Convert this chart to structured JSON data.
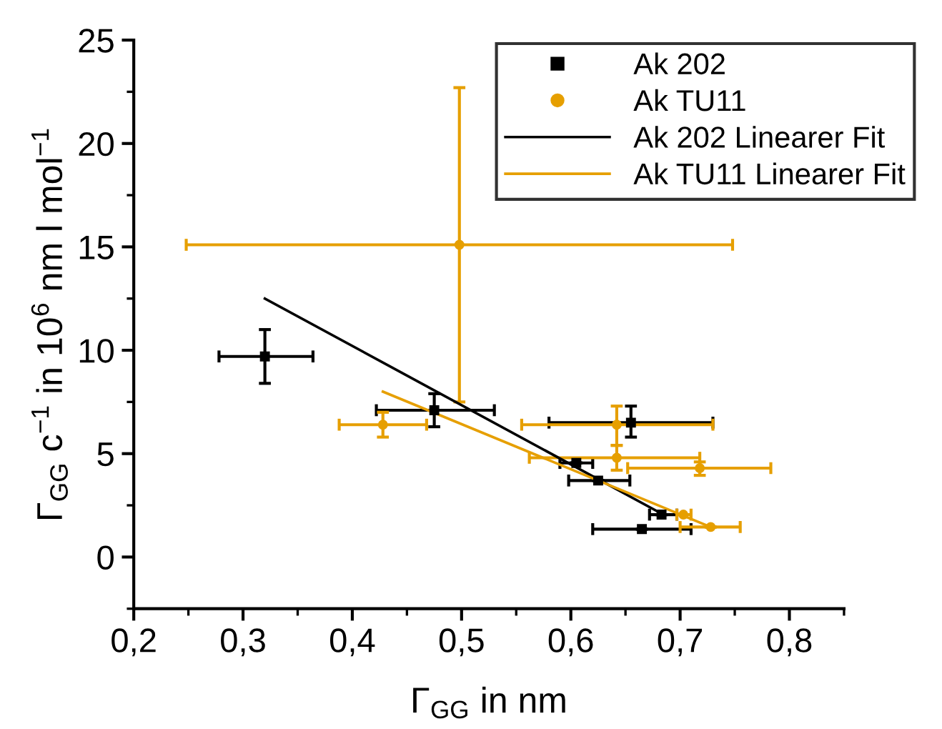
{
  "chart_data": {
    "type": "scatter",
    "xlabel": "Γ$_{GG}$ in nm",
    "ylabel": "Γ$_{GG}$ c$^{−1}$ in 10$^{6}$ nm l mol$^{−1}$",
    "xlim": [
      0.2,
      0.85
    ],
    "xticks": [
      {
        "value": 0.2,
        "label": "0,2"
      },
      {
        "value": 0.3,
        "label": "0,3"
      },
      {
        "value": 0.4,
        "label": "0,4"
      },
      {
        "value": 0.5,
        "label": "0,5"
      },
      {
        "value": 0.6,
        "label": "0,6"
      },
      {
        "value": 0.7,
        "label": "0,7"
      },
      {
        "value": 0.8,
        "label": "0,8"
      }
    ],
    "ylim": [
      -2.5,
      25
    ],
    "yticks": [
      0,
      5,
      10,
      15,
      20,
      25
    ],
    "grid": false,
    "legend": "top right",
    "series": [
      {
        "name": "Ak 202",
        "color": "#000000",
        "marker": "square",
        "x": [
          0.32,
          0.475,
          0.655,
          0.605,
          0.625,
          0.683,
          0.665
        ],
        "values": [
          9.7,
          7.1,
          6.5,
          4.55,
          3.7,
          2.05,
          1.35
        ],
        "errors": [
          [
            8.4,
            11.0
          ],
          [
            6.3,
            7.9
          ],
          [
            5.8,
            7.3
          ],
          null,
          null,
          null,
          null
        ],
        "xerrors": [
          [
            0.278,
            0.364
          ],
          [
            0.422,
            0.53
          ],
          [
            0.58,
            0.73
          ],
          [
            0.59,
            0.62
          ],
          [
            0.598,
            0.654
          ],
          [
            0.672,
            0.697
          ],
          [
            0.62,
            0.71
          ]
        ]
      },
      {
        "name": "Ak TU11",
        "color": "#e69f00",
        "marker": "circle",
        "x": [
          0.498,
          0.428,
          0.642,
          0.642,
          0.718,
          0.703,
          0.728
        ],
        "values": [
          15.1,
          6.4,
          6.4,
          4.8,
          4.3,
          2.05,
          1.45
        ],
        "errors": [
          [
            7.5,
            22.7
          ],
          [
            5.8,
            7.0
          ],
          [
            5.4,
            7.3
          ],
          [
            4.2,
            5.4
          ],
          [
            3.95,
            4.6
          ],
          null,
          null
        ],
        "xerrors": [
          [
            0.248,
            0.748
          ],
          [
            0.388,
            0.468
          ],
          [
            0.555,
            0.73
          ],
          [
            0.562,
            0.718
          ],
          [
            0.652,
            0.783
          ],
          [
            0.697,
            0.71
          ],
          [
            0.7,
            0.755
          ]
        ]
      },
      {
        "name": "Ak 202 Linearer Fit",
        "type": "line",
        "color": "#000000",
        "marker": "none",
        "x": [
          0.32,
          0.683
        ],
        "values": [
          12.5,
          2.1
        ]
      },
      {
        "name": "Ak TU11 Linearer Fit",
        "type": "line",
        "color": "#e69f00",
        "marker": "none",
        "x": [
          0.428,
          0.728
        ],
        "values": [
          8.0,
          1.45
        ]
      }
    ]
  }
}
